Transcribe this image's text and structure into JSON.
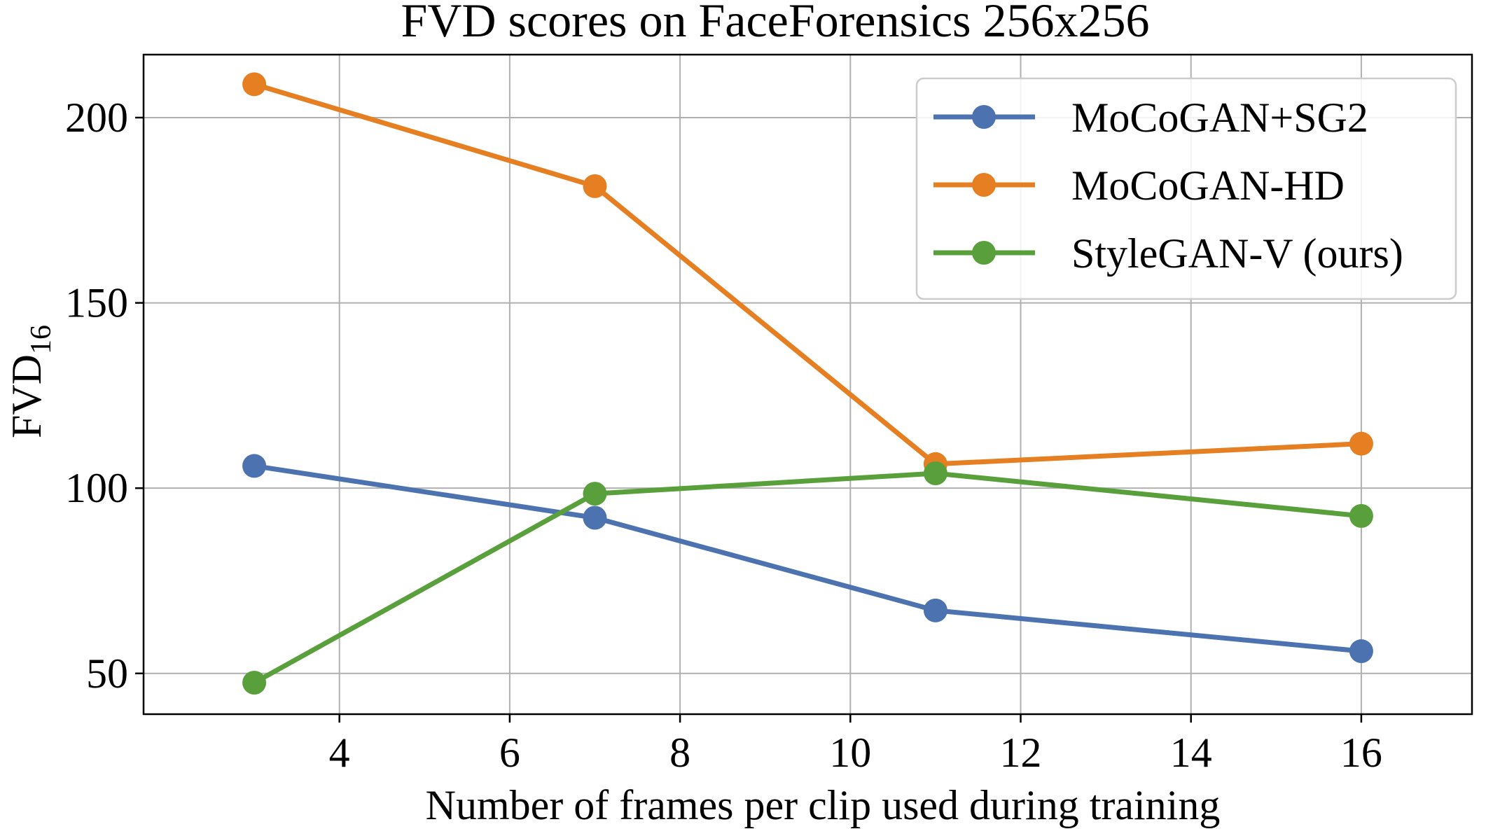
{
  "chart_data": {
    "type": "line",
    "title": "FVD scores on FaceForensics 256x256",
    "xlabel": "Number of frames per clip used during training",
    "ylabel": "FVD",
    "ylabel_subscript": "16",
    "xlim": [
      1.7,
      17.3
    ],
    "ylim": [
      39,
      217
    ],
    "xticks": [
      4,
      6,
      8,
      10,
      12,
      14,
      16
    ],
    "xtick_labels": [
      "4",
      "6",
      "8",
      "10",
      "12",
      "14",
      "16"
    ],
    "yticks": [
      50,
      100,
      150,
      200
    ],
    "ytick_labels": [
      "50",
      "100",
      "150",
      "200"
    ],
    "grid": true,
    "legend_position": "top-right",
    "x": [
      3,
      7,
      11,
      16
    ],
    "series": [
      {
        "name": "MoCoGAN+SG2",
        "color": "#4c72b0",
        "values": [
          106,
          92,
          67,
          56
        ]
      },
      {
        "name": "MoCoGAN-HD",
        "color": "#e67e22",
        "values": [
          209,
          181.5,
          106.5,
          112
        ]
      },
      {
        "name": "StyleGAN-V (ours)",
        "color": "#59a03c",
        "values": [
          47.5,
          98.5,
          104,
          92.5
        ]
      }
    ]
  }
}
